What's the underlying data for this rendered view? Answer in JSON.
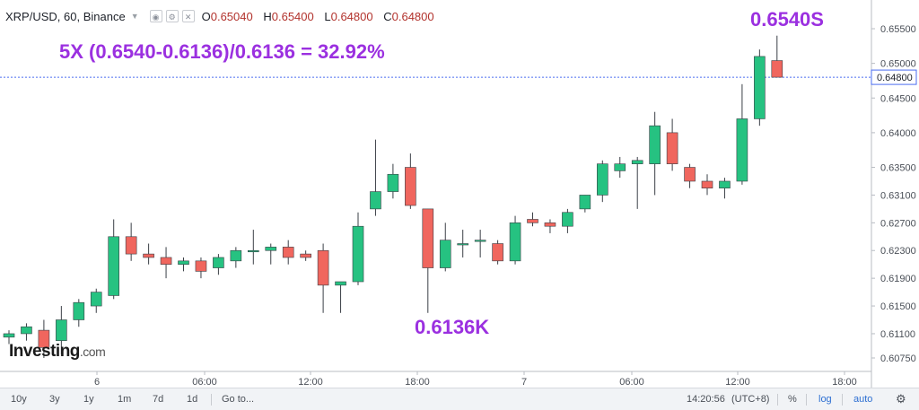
{
  "legend": {
    "symbol": "XRP/USD, 60, Binance",
    "open_label": "O",
    "open": "0.65040",
    "high_label": "H",
    "high": "0.65400",
    "low_label": "L",
    "low": "0.64800",
    "close_label": "C",
    "close": "0.64800"
  },
  "annotations": {
    "formula": "5X (0.6540-0.6136)/0.6136 = 32.92%",
    "high_mark": "0.6540S",
    "low_mark": "0.6136K"
  },
  "brand": {
    "name": "Investing",
    "suffix": ".com"
  },
  "toolbar": {
    "ranges": [
      "10y",
      "3y",
      "1y",
      "1m",
      "7d",
      "1d"
    ],
    "goto": "Go to...",
    "time": "14:20:56",
    "tz": "(UTC+8)",
    "percent": "%",
    "log": "log",
    "auto": "auto"
  },
  "colors": {
    "up": "#26c281",
    "down": "#f0665e",
    "wick": "#3a3f46",
    "annotation": "#9b30e0",
    "current_price_line": "#4a6cf0"
  },
  "chart_data": {
    "type": "candlestick",
    "title": "XRP/USD, 60, Binance",
    "y_ticks": [
      "0.65500",
      "0.65000",
      "0.64500",
      "0.64000",
      "0.63500",
      "0.63100",
      "0.62700",
      "0.62300",
      "0.61900",
      "0.61500",
      "0.61100",
      "0.60750"
    ],
    "x_ticks": [
      "6",
      "06:00",
      "12:00",
      "18:00",
      "7",
      "06:00",
      "12:00",
      "18:00"
    ],
    "current_price": 0.648,
    "current_price_label": "0.64800",
    "candles": [
      {
        "o": 0.6105,
        "h": 0.6115,
        "l": 0.6095,
        "c": 0.611
      },
      {
        "o": 0.611,
        "h": 0.6125,
        "l": 0.61,
        "c": 0.612
      },
      {
        "o": 0.6115,
        "h": 0.613,
        "l": 0.6075,
        "c": 0.609
      },
      {
        "o": 0.61,
        "h": 0.615,
        "l": 0.608,
        "c": 0.613
      },
      {
        "o": 0.613,
        "h": 0.616,
        "l": 0.612,
        "c": 0.6155
      },
      {
        "o": 0.615,
        "h": 0.6175,
        "l": 0.614,
        "c": 0.617
      },
      {
        "o": 0.6165,
        "h": 0.6275,
        "l": 0.616,
        "c": 0.625
      },
      {
        "o": 0.625,
        "h": 0.627,
        "l": 0.6215,
        "c": 0.6225
      },
      {
        "o": 0.6225,
        "h": 0.624,
        "l": 0.621,
        "c": 0.622
      },
      {
        "o": 0.622,
        "h": 0.6235,
        "l": 0.619,
        "c": 0.621
      },
      {
        "o": 0.621,
        "h": 0.622,
        "l": 0.62,
        "c": 0.6215
      },
      {
        "o": 0.6215,
        "h": 0.622,
        "l": 0.619,
        "c": 0.62
      },
      {
        "o": 0.6205,
        "h": 0.6225,
        "l": 0.6195,
        "c": 0.622
      },
      {
        "o": 0.6215,
        "h": 0.6235,
        "l": 0.6205,
        "c": 0.623
      },
      {
        "o": 0.623,
        "h": 0.626,
        "l": 0.621,
        "c": 0.623
      },
      {
        "o": 0.623,
        "h": 0.624,
        "l": 0.621,
        "c": 0.6235
      },
      {
        "o": 0.6235,
        "h": 0.6245,
        "l": 0.621,
        "c": 0.622
      },
      {
        "o": 0.6225,
        "h": 0.623,
        "l": 0.6215,
        "c": 0.622
      },
      {
        "o": 0.623,
        "h": 0.624,
        "l": 0.614,
        "c": 0.618
      },
      {
        "o": 0.618,
        "h": 0.6185,
        "l": 0.614,
        "c": 0.6185
      },
      {
        "o": 0.6185,
        "h": 0.6285,
        "l": 0.618,
        "c": 0.6265
      },
      {
        "o": 0.629,
        "h": 0.639,
        "l": 0.628,
        "c": 0.6315
      },
      {
        "o": 0.6315,
        "h": 0.6355,
        "l": 0.6305,
        "c": 0.634
      },
      {
        "o": 0.635,
        "h": 0.637,
        "l": 0.629,
        "c": 0.6295
      },
      {
        "o": 0.629,
        "h": 0.629,
        "l": 0.614,
        "c": 0.6205
      },
      {
        "o": 0.6205,
        "h": 0.627,
        "l": 0.62,
        "c": 0.6245
      },
      {
        "o": 0.624,
        "h": 0.626,
        "l": 0.622,
        "c": 0.624
      },
      {
        "o": 0.6245,
        "h": 0.626,
        "l": 0.622,
        "c": 0.6245
      },
      {
        "o": 0.624,
        "h": 0.6245,
        "l": 0.621,
        "c": 0.6215
      },
      {
        "o": 0.6215,
        "h": 0.628,
        "l": 0.621,
        "c": 0.627
      },
      {
        "o": 0.6275,
        "h": 0.6285,
        "l": 0.6265,
        "c": 0.627
      },
      {
        "o": 0.627,
        "h": 0.6275,
        "l": 0.6255,
        "c": 0.6265
      },
      {
        "o": 0.6265,
        "h": 0.629,
        "l": 0.6255,
        "c": 0.6285
      },
      {
        "o": 0.629,
        "h": 0.631,
        "l": 0.6285,
        "c": 0.631
      },
      {
        "o": 0.631,
        "h": 0.636,
        "l": 0.63,
        "c": 0.6355
      },
      {
        "o": 0.6345,
        "h": 0.6365,
        "l": 0.6335,
        "c": 0.6355
      },
      {
        "o": 0.6355,
        "h": 0.6365,
        "l": 0.629,
        "c": 0.636
      },
      {
        "o": 0.6355,
        "h": 0.643,
        "l": 0.631,
        "c": 0.641
      },
      {
        "o": 0.64,
        "h": 0.642,
        "l": 0.6345,
        "c": 0.6355
      },
      {
        "o": 0.635,
        "h": 0.6355,
        "l": 0.632,
        "c": 0.633
      },
      {
        "o": 0.633,
        "h": 0.634,
        "l": 0.631,
        "c": 0.632
      },
      {
        "o": 0.632,
        "h": 0.6335,
        "l": 0.6305,
        "c": 0.633
      },
      {
        "o": 0.633,
        "h": 0.647,
        "l": 0.6325,
        "c": 0.642
      },
      {
        "o": 0.642,
        "h": 0.652,
        "l": 0.641,
        "c": 0.651
      },
      {
        "o": 0.6504,
        "h": 0.654,
        "l": 0.648,
        "c": 0.648
      }
    ]
  }
}
